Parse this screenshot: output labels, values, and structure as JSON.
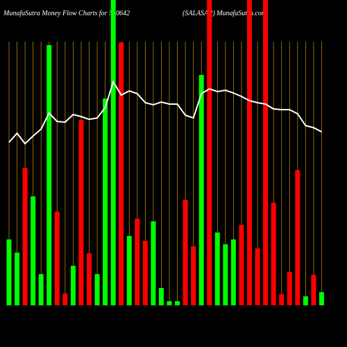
{
  "chart_data": {
    "type": "bar",
    "title": "MunafaSutra  Money Flow  Charts for 540642",
    "subtitle": "(SALASAR) MunafaSutra.com",
    "categories": [
      null,
      null,
      null,
      null,
      null,
      null,
      null,
      null,
      null,
      null,
      null,
      null,
      null,
      null,
      null,
      null,
      null,
      null,
      null,
      null,
      null,
      null,
      null,
      null,
      null,
      null,
      null,
      null,
      null,
      null,
      null,
      null,
      null,
      null,
      null,
      null,
      null,
      null,
      null,
      null
    ],
    "values": [
      95,
      76,
      198,
      157,
      45,
      375,
      135,
      17,
      57,
      267,
      75,
      45,
      298,
      440,
      379,
      100,
      125,
      93,
      121,
      25,
      6,
      6,
      152,
      85,
      332,
      440,
      105,
      88,
      95,
      116,
      440,
      82,
      440,
      148,
      16,
      48,
      195,
      13,
      44,
      19
    ],
    "colors": [
      "#00ff00",
      "#00ff00",
      "#ff0000",
      "#00ff00",
      "#00ff00",
      "#00ff00",
      "#ff0000",
      "#ff0000",
      "#00ff00",
      "#ff0000",
      "#ff0000",
      "#00ff00",
      "#00ff00",
      "#00ff00",
      "#ff0000",
      "#00ff00",
      "#ff0000",
      "#ff0000",
      "#00ff00",
      "#00ff00",
      "#00ff00",
      "#00ff00",
      "#ff0000",
      "#ff0000",
      "#00ff00",
      "#ff0000",
      "#00ff00",
      "#00ff00",
      "#00ff00",
      "#ff0000",
      "#ff0000",
      "#ff0000",
      "#ff0000",
      "#ff0000",
      "#ff0000",
      "#ff0000",
      "#ff0000",
      "#00ff00",
      "#ff0000",
      "#00ff00"
    ],
    "line": {
      "color": "#ffffff",
      "values": [
        235,
        248,
        233,
        244,
        254,
        277,
        265,
        264,
        275,
        272,
        268,
        270,
        285,
        322,
        303,
        309,
        305,
        292,
        289,
        293,
        290,
        290,
        274,
        270,
        305,
        312,
        308,
        310,
        306,
        301,
        295,
        292,
        290,
        283,
        282,
        282,
        276,
        259,
        256,
        250
      ]
    },
    "ylim": [
      0,
      440
    ],
    "grid_color": "#b8860b"
  }
}
